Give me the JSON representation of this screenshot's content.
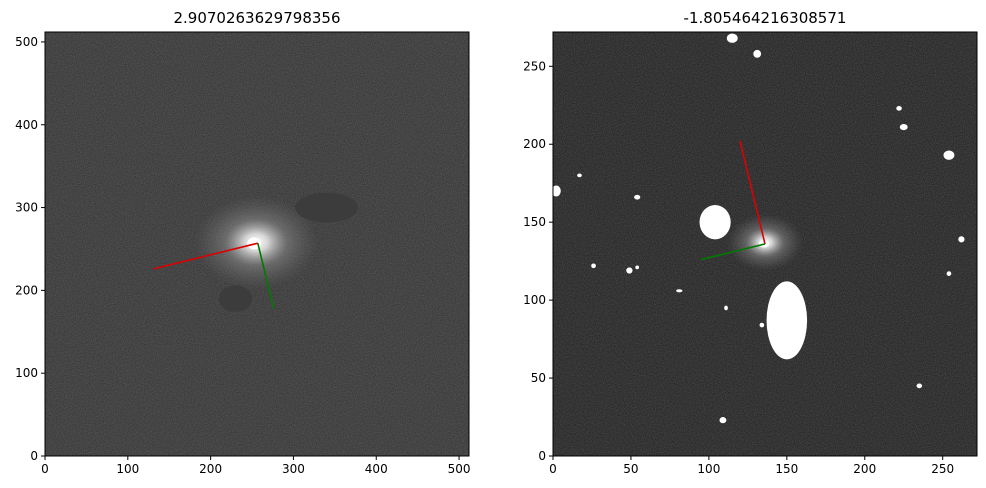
{
  "chart_data": [
    {
      "type": "image",
      "title": "2.9070263629798356",
      "xlim": [
        0,
        512
      ],
      "ylim": [
        0,
        512
      ],
      "xticks": [
        0,
        100,
        200,
        300,
        400,
        500
      ],
      "yticks": [
        0,
        100,
        200,
        300,
        400,
        500
      ],
      "colormap": "gray",
      "background": "#2e2e2e",
      "galaxy": {
        "x": 255,
        "y": 258
      },
      "blobs": [
        {
          "x": 340,
          "y": 300,
          "rx": 38,
          "ry": 18,
          "color": "#3c3c3c"
        },
        {
          "x": 230,
          "y": 190,
          "rx": 20,
          "ry": 16,
          "color": "#3c3c3c"
        }
      ],
      "lines": [
        {
          "color": "#dd0000",
          "points": [
            [
              257,
              257
            ],
            [
              131,
              226
            ]
          ]
        },
        {
          "color": "#007a00",
          "points": [
            [
              257,
              257
            ],
            [
              276,
              178
            ]
          ]
        }
      ]
    },
    {
      "type": "image",
      "title": "-1.805464216308571",
      "xlim": [
        0,
        272
      ],
      "ylim": [
        0,
        272
      ],
      "xticks": [
        0,
        50,
        100,
        150,
        200,
        250
      ],
      "yticks": [
        0,
        50,
        100,
        150,
        200,
        250
      ],
      "colormap": "gray",
      "background": "#1c1c1c",
      "galaxy": {
        "x": 136,
        "y": 137
      },
      "blobs": [
        {
          "x": 150,
          "y": 87,
          "rx": 13,
          "ry": 25,
          "color": "#ffffff"
        },
        {
          "x": 104,
          "y": 150,
          "rx": 10,
          "ry": 11,
          "color": "#ffffff"
        },
        {
          "x": 254,
          "y": 193,
          "rx": 3.5,
          "ry": 3,
          "color": "#ffffff"
        },
        {
          "x": 2,
          "y": 170,
          "rx": 3,
          "ry": 3.5,
          "color": "#ffffff"
        },
        {
          "x": 115,
          "y": 268,
          "rx": 3.5,
          "ry": 3,
          "color": "#ffffff"
        },
        {
          "x": 131,
          "y": 258,
          "rx": 2.5,
          "ry": 2.5,
          "color": "#ffffff"
        },
        {
          "x": 225,
          "y": 211,
          "rx": 2.5,
          "ry": 2,
          "color": "#ffffff"
        },
        {
          "x": 222,
          "y": 223,
          "rx": 1.8,
          "ry": 1.5,
          "color": "#ffffff"
        },
        {
          "x": 262,
          "y": 139,
          "rx": 2,
          "ry": 2,
          "color": "#ffffff"
        },
        {
          "x": 254,
          "y": 117,
          "rx": 1.5,
          "ry": 1.5,
          "color": "#ffffff"
        },
        {
          "x": 235,
          "y": 45,
          "rx": 1.8,
          "ry": 1.5,
          "color": "#ffffff"
        },
        {
          "x": 109,
          "y": 23,
          "rx": 2.2,
          "ry": 2,
          "color": "#ffffff"
        },
        {
          "x": 54,
          "y": 166,
          "rx": 2,
          "ry": 1.5,
          "color": "#ffffff"
        },
        {
          "x": 49,
          "y": 119,
          "rx": 2,
          "ry": 2,
          "color": "#ffffff"
        },
        {
          "x": 26,
          "y": 122,
          "rx": 1.5,
          "ry": 1.5,
          "color": "#ffffff"
        },
        {
          "x": 17,
          "y": 180,
          "rx": 1.5,
          "ry": 1.2,
          "color": "#ffffff"
        },
        {
          "x": 111,
          "y": 95,
          "rx": 1.2,
          "ry": 1.5,
          "color": "#ffffff"
        },
        {
          "x": 134,
          "y": 84,
          "rx": 1.5,
          "ry": 1.5,
          "color": "#ffffff"
        },
        {
          "x": 81,
          "y": 106,
          "rx": 2,
          "ry": 1,
          "color": "#ffffff"
        },
        {
          "x": 54,
          "y": 121,
          "rx": 1.2,
          "ry": 1.2,
          "color": "#ffffff"
        }
      ],
      "lines": [
        {
          "color": "#dd0000",
          "points": [
            [
              136,
              136
            ],
            [
              120,
              202
            ]
          ]
        },
        {
          "color": "#007a00",
          "points": [
            [
              136,
              136
            ],
            [
              95,
              126
            ]
          ]
        }
      ]
    }
  ]
}
